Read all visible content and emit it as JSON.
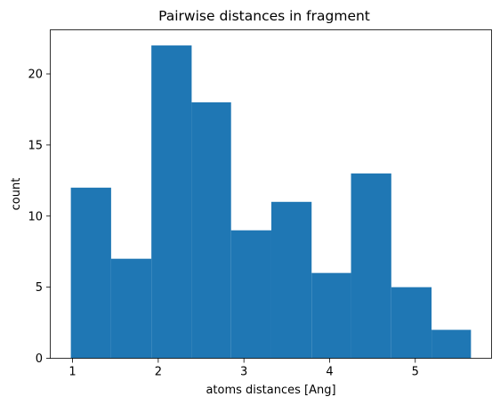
{
  "chart_data": {
    "type": "bar",
    "title": "Pairwise distances in fragment",
    "xlabel": "atoms distances [Ang]",
    "ylabel": "count",
    "bins": [
      {
        "x0": 0.98,
        "x1": 1.45,
        "count": 12
      },
      {
        "x0": 1.45,
        "x1": 1.92,
        "count": 7
      },
      {
        "x0": 1.92,
        "x1": 2.39,
        "count": 22
      },
      {
        "x0": 2.39,
        "x1": 2.85,
        "count": 18
      },
      {
        "x0": 2.85,
        "x1": 3.32,
        "count": 9
      },
      {
        "x0": 3.32,
        "x1": 3.79,
        "count": 11
      },
      {
        "x0": 3.79,
        "x1": 4.25,
        "count": 6
      },
      {
        "x0": 4.25,
        "x1": 4.72,
        "count": 13
      },
      {
        "x0": 4.72,
        "x1": 5.19,
        "count": 5
      },
      {
        "x0": 5.19,
        "x1": 5.65,
        "count": 2
      }
    ],
    "xlim": [
      0.745,
      5.885
    ],
    "ylim": [
      0,
      23.1
    ],
    "xticks": [
      1,
      2,
      3,
      4,
      5
    ],
    "yticks": [
      0,
      5,
      10,
      15,
      20
    ],
    "bar_color": "#1f77b4",
    "grid": false,
    "legend": "none"
  }
}
